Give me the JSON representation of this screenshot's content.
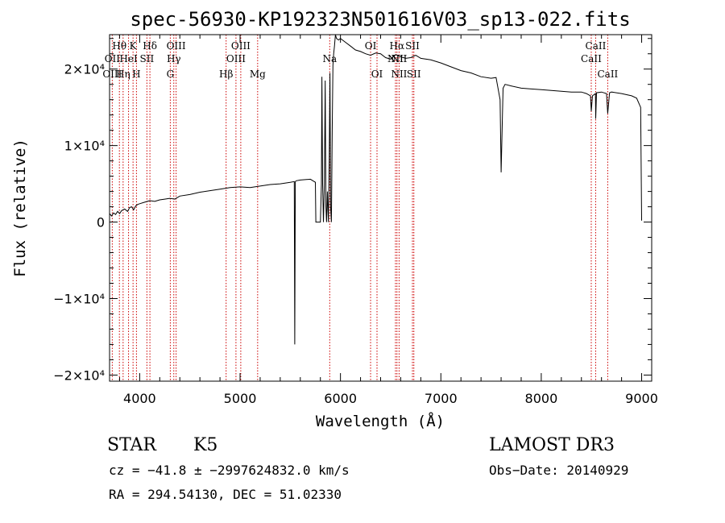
{
  "chart_data": {
    "type": "line",
    "title": "spec-56930-KP192323N501616V03_sp13-022.fits",
    "xlabel": "Wavelength (Å)",
    "ylabel": "Flux (relative)",
    "xlim": [
      3700,
      9100
    ],
    "ylim": [
      -20800,
      24500
    ],
    "grid": false,
    "x_ticks": [
      {
        "value": 4000,
        "label": "4000"
      },
      {
        "value": 5000,
        "label": "5000"
      },
      {
        "value": 6000,
        "label": "6000"
      },
      {
        "value": 7000,
        "label": "7000"
      },
      {
        "value": 8000,
        "label": "8000"
      },
      {
        "value": 9000,
        "label": "9000"
      }
    ],
    "y_ticks": [
      {
        "value": -20000,
        "label": "−2×10⁴"
      },
      {
        "value": -10000,
        "label": "−1×10⁴"
      },
      {
        "value": 0,
        "label": "0"
      },
      {
        "value": 10000,
        "label": "1×10⁴"
      },
      {
        "value": 20000,
        "label": "2×10⁴"
      }
    ],
    "series": [
      {
        "x": [
          3700,
          3720,
          3740,
          3760,
          3780,
          3800,
          3820,
          3850,
          3880,
          3900,
          3920,
          3940,
          3960,
          3980,
          4000,
          4050,
          4100,
          4150,
          4200,
          4250,
          4300,
          4350,
          4400,
          4500,
          4600,
          4700,
          4800,
          4850,
          4900,
          5000,
          5100,
          5200,
          5300,
          5400,
          5500,
          5540,
          5545,
          5550,
          5560,
          5600,
          5700,
          5750,
          5755,
          5780,
          5800,
          5810,
          5815,
          5822,
          5830,
          5840,
          5848,
          5855,
          5862,
          5870,
          5880,
          5888,
          5895,
          5902,
          5910,
          5918,
          5925,
          5932,
          5940,
          5950,
          5960,
          5980,
          6000,
          6050,
          6100,
          6150,
          6200,
          6250,
          6300,
          6350,
          6400,
          6450,
          6500,
          6550,
          6600,
          6650,
          6700,
          6750,
          6800,
          6900,
          7000,
          7100,
          7200,
          7300,
          7400,
          7500,
          7550,
          7590,
          7600,
          7610,
          7620,
          7640,
          7700,
          7800,
          7900,
          8000,
          8100,
          8200,
          8300,
          8400,
          8450,
          8490,
          8498,
          8510,
          8540,
          8542,
          8550,
          8600,
          8650,
          8662,
          8680,
          8700,
          8800,
          8900,
          8950,
          8990,
          9000
        ],
        "y": [
          1100,
          800,
          1200,
          1000,
          1400,
          1100,
          1500,
          1700,
          1400,
          1900,
          2000,
          1600,
          2100,
          2300,
          2400,
          2600,
          2800,
          2700,
          2900,
          3000,
          3100,
          3000,
          3400,
          3600,
          3900,
          4100,
          4300,
          4400,
          4500,
          4600,
          4500,
          4700,
          4900,
          5000,
          5200,
          5300,
          -16000,
          5300,
          5400,
          5500,
          5600,
          5200,
          0,
          0,
          0,
          5000,
          19000,
          5000,
          0,
          5000,
          18500,
          2000,
          0,
          4000,
          0,
          8000,
          19500,
          2000,
          0,
          12000,
          20500,
          22000,
          23000,
          24500,
          24000,
          23800,
          24000,
          23500,
          23000,
          22500,
          22300,
          22000,
          21800,
          22100,
          22000,
          21500,
          21300,
          21900,
          21600,
          21400,
          21500,
          21800,
          21400,
          21200,
          20800,
          20300,
          19800,
          19500,
          19000,
          18800,
          18900,
          16000,
          6500,
          12000,
          17500,
          18000,
          17800,
          17500,
          17400,
          17300,
          17200,
          17100,
          17000,
          17000,
          16800,
          16500,
          14500,
          16500,
          16800,
          13500,
          16900,
          17000,
          16800,
          14200,
          16900,
          17000,
          16800,
          16500,
          16200,
          15000,
          200
        ]
      }
    ],
    "line_labels": [
      {
        "text": "Hθ",
        "x": 3798,
        "row": 1
      },
      {
        "text": "K",
        "x": 3934,
        "row": 1
      },
      {
        "text": "Hδ",
        "x": 4102,
        "row": 1
      },
      {
        "text": "OIII",
        "x": 4363,
        "row": 1
      },
      {
        "text": "OIII",
        "x": 5007,
        "row": 1
      },
      {
        "text": "OI",
        "x": 6300,
        "row": 1
      },
      {
        "text": "Hα",
        "x": 6563,
        "row": 1
      },
      {
        "text": "SII",
        "x": 6717,
        "row": 1
      },
      {
        "text": "CaII",
        "x": 8542,
        "row": 1
      },
      {
        "text": "OII",
        "x": 3727,
        "row": 2
      },
      {
        "text": "HeI",
        "x": 3889,
        "row": 2
      },
      {
        "text": "SII",
        "x": 4072,
        "row": 2
      },
      {
        "text": "Hγ",
        "x": 4340,
        "row": 2
      },
      {
        "text": "OIII",
        "x": 4959,
        "row": 2
      },
      {
        "text": "Na",
        "x": 5893,
        "row": 2
      },
      {
        "text": "NII",
        "x": 6548,
        "row": 2
      },
      {
        "text": "NII",
        "x": 6584,
        "row": 2
      },
      {
        "text": "CaII",
        "x": 8498,
        "row": 2
      },
      {
        "text": "OIII",
        "x": 3727,
        "row": 3
      },
      {
        "text": "Hη",
        "x": 3835,
        "row": 3
      },
      {
        "text": "H",
        "x": 3968,
        "row": 3
      },
      {
        "text": "G",
        "x": 4305,
        "row": 3
      },
      {
        "text": "Hβ",
        "x": 4861,
        "row": 3
      },
      {
        "text": "Mg",
        "x": 5175,
        "row": 3
      },
      {
        "text": "OI",
        "x": 6364,
        "row": 3
      },
      {
        "text": "NII",
        "x": 6584,
        "row": 3
      },
      {
        "text": "SII",
        "x": 6731,
        "row": 3
      },
      {
        "text": "CaII",
        "x": 8662,
        "row": 3
      }
    ],
    "line_markers": [
      3727,
      3798,
      3835,
      3889,
      3934,
      3968,
      4072,
      4102,
      4305,
      4340,
      4363,
      4861,
      4959,
      5007,
      5175,
      5893,
      6300,
      6364,
      6548,
      6563,
      6584,
      6717,
      6731,
      8498,
      8542,
      8662
    ],
    "colors": {
      "spectrum": "#000000",
      "line_marker": "#cc0000",
      "axes": "#000000"
    }
  },
  "info": {
    "object_type": "STAR",
    "subclass": "K5",
    "survey": "LAMOST DR3",
    "redshift": "cz = −41.8 ± −2997624832.0 km/s",
    "obs_date": "Obs−Date: 20140929",
    "coords": "RA = 294.54130, DEC =  51.02330"
  }
}
